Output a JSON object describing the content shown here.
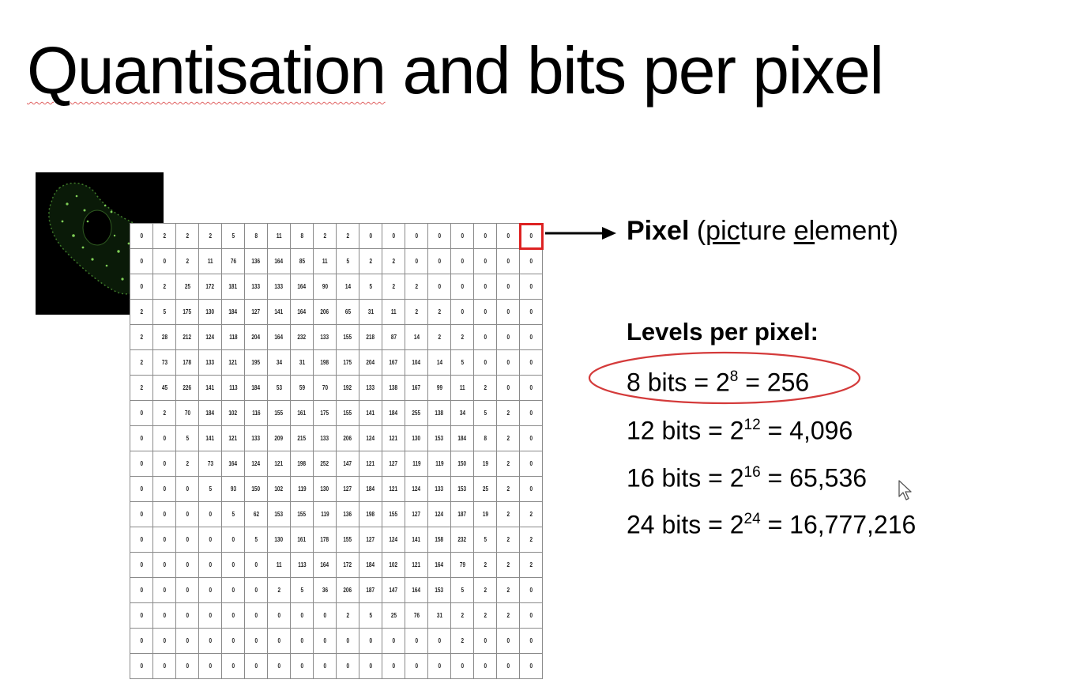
{
  "slide": {
    "title": {
      "underlined_word": "Quantisation",
      "rest": " and bits per pixel"
    },
    "thumbnail": {
      "icon": "fluorescent-cell-image",
      "background_color": "#000000",
      "signal_color": "#5ea83a"
    },
    "pixel_grid": {
      "rows": [
        [
          "0",
          "2",
          "2",
          "2",
          "5",
          "8",
          "11",
          "8",
          "2",
          "2",
          "0",
          "0",
          "0",
          "0",
          "0",
          "0",
          "0",
          "0"
        ],
        [
          "0",
          "0",
          "2",
          "11",
          "76",
          "136",
          "164",
          "85",
          "11",
          "5",
          "2",
          "2",
          "0",
          "0",
          "0",
          "0",
          "0",
          "0"
        ],
        [
          "0",
          "2",
          "25",
          "172",
          "181",
          "133",
          "133",
          "164",
          "90",
          "14",
          "5",
          "2",
          "2",
          "0",
          "0",
          "0",
          "0",
          "0"
        ],
        [
          "2",
          "5",
          "175",
          "130",
          "184",
          "127",
          "141",
          "164",
          "206",
          "65",
          "31",
          "11",
          "2",
          "2",
          "0",
          "0",
          "0",
          "0"
        ],
        [
          "2",
          "28",
          "212",
          "124",
          "118",
          "204",
          "164",
          "232",
          "133",
          "155",
          "218",
          "87",
          "14",
          "2",
          "2",
          "0",
          "0",
          "0"
        ],
        [
          "2",
          "73",
          "178",
          "133",
          "121",
          "195",
          "34",
          "31",
          "198",
          "175",
          "204",
          "167",
          "104",
          "14",
          "5",
          "0",
          "0",
          "0"
        ],
        [
          "2",
          "45",
          "226",
          "141",
          "113",
          "184",
          "53",
          "59",
          "70",
          "192",
          "133",
          "138",
          "167",
          "99",
          "11",
          "2",
          "0",
          "0"
        ],
        [
          "0",
          "2",
          "70",
          "184",
          "102",
          "116",
          "155",
          "161",
          "175",
          "155",
          "141",
          "184",
          "255",
          "138",
          "34",
          "5",
          "2",
          "0"
        ],
        [
          "0",
          "0",
          "5",
          "141",
          "121",
          "133",
          "209",
          "215",
          "133",
          "206",
          "124",
          "121",
          "130",
          "153",
          "184",
          "8",
          "2",
          "0"
        ],
        [
          "0",
          "0",
          "2",
          "73",
          "164",
          "124",
          "121",
          "198",
          "252",
          "147",
          "121",
          "127",
          "119",
          "119",
          "150",
          "19",
          "2",
          "0"
        ],
        [
          "0",
          "0",
          "0",
          "5",
          "93",
          "150",
          "102",
          "119",
          "130",
          "127",
          "184",
          "121",
          "124",
          "133",
          "153",
          "25",
          "2",
          "0"
        ],
        [
          "0",
          "0",
          "0",
          "0",
          "5",
          "62",
          "153",
          "155",
          "119",
          "136",
          "198",
          "155",
          "127",
          "124",
          "187",
          "19",
          "2",
          "2"
        ],
        [
          "0",
          "0",
          "0",
          "0",
          "0",
          "5",
          "130",
          "161",
          "178",
          "155",
          "127",
          "124",
          "141",
          "158",
          "232",
          "5",
          "2",
          "2"
        ],
        [
          "0",
          "0",
          "0",
          "0",
          "0",
          "0",
          "11",
          "113",
          "164",
          "172",
          "184",
          "102",
          "121",
          "164",
          "79",
          "2",
          "2",
          "2"
        ],
        [
          "0",
          "0",
          "0",
          "0",
          "0",
          "0",
          "2",
          "5",
          "36",
          "206",
          "187",
          "147",
          "164",
          "153",
          "5",
          "2",
          "2",
          "0"
        ],
        [
          "0",
          "0",
          "0",
          "0",
          "0",
          "0",
          "0",
          "0",
          "0",
          "2",
          "5",
          "25",
          "76",
          "31",
          "2",
          "2",
          "2",
          "0"
        ],
        [
          "0",
          "0",
          "0",
          "0",
          "0",
          "0",
          "0",
          "0",
          "0",
          "0",
          "0",
          "0",
          "0",
          "0",
          "2",
          "0",
          "0",
          "0"
        ],
        [
          "0",
          "0",
          "0",
          "0",
          "0",
          "0",
          "0",
          "0",
          "0",
          "0",
          "0",
          "0",
          "0",
          "0",
          "0",
          "0",
          "0",
          "0"
        ]
      ],
      "highlighted_cell": {
        "row": 0,
        "col": 17
      },
      "highlight_color": "#dd2222"
    },
    "pixel_label": {
      "bold": "Pixel",
      "open": " (",
      "pic": "pic",
      "ture": "ture ",
      "el": "el",
      "ement": "ement)"
    },
    "levels": {
      "heading": "Levels per pixel:",
      "items": [
        {
          "bits": "8 bits = 2",
          "exp": "8",
          "result": " = 256",
          "circled": true
        },
        {
          "bits": "12 bits = 2",
          "exp": "12",
          "result": " = 4,096",
          "circled": false
        },
        {
          "bits": "16 bits = 2",
          "exp": "16",
          "result": " = 65,536",
          "circled": false
        },
        {
          "bits": "24 bits = 2",
          "exp": "24",
          "result": " = 16,777,216",
          "circled": false
        }
      ],
      "circle_color": "#d43a3a"
    },
    "pointer": {
      "icon": "mouse-pointer-icon"
    }
  }
}
